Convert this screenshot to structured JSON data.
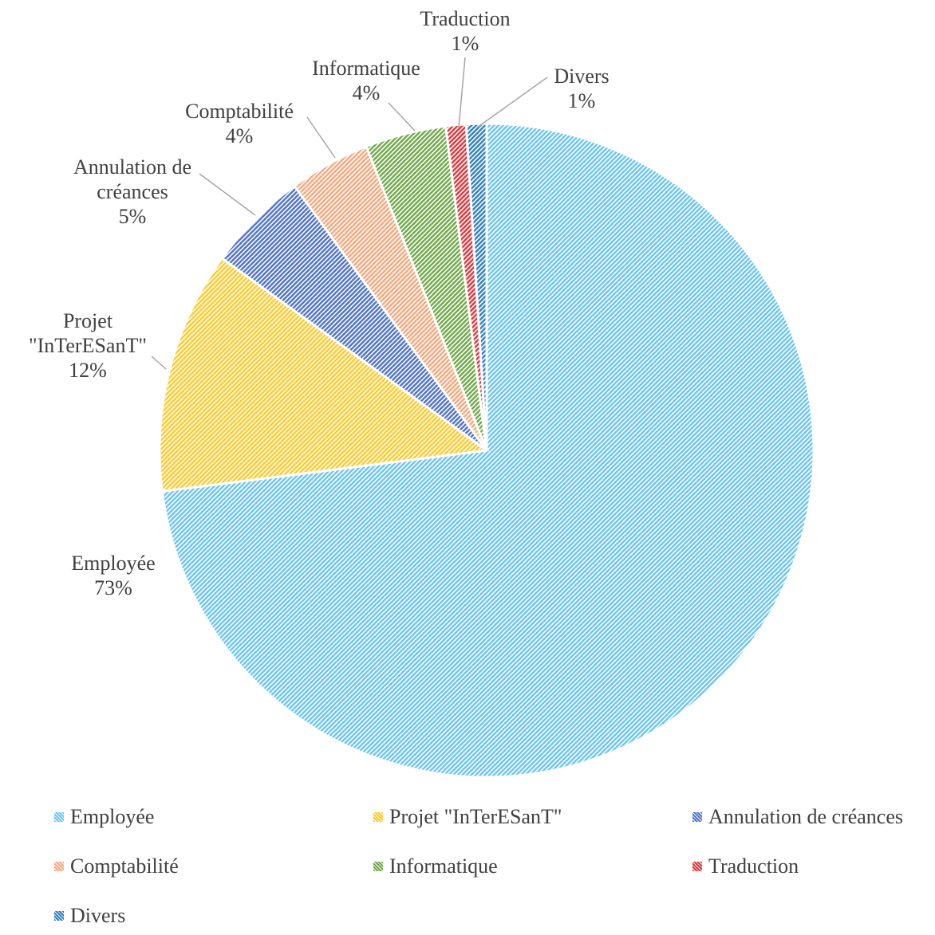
{
  "chart_data": {
    "type": "pie",
    "slices": [
      {
        "name": "Employée",
        "value": 73,
        "label_name_lines": [
          "Employée"
        ],
        "label_value": "73%",
        "color": "#6cc4f2"
      },
      {
        "name": "Projet \"InTerESanT\"",
        "value": 12,
        "label_name_lines": [
          "Projet",
          "\"InTerESanT\""
        ],
        "label_value": "12%",
        "color": "#ffc928"
      },
      {
        "name": "Annulation de créances",
        "value": 5,
        "label_name_lines": [
          "Annulation de",
          "créances"
        ],
        "label_value": "5%",
        "color": "#4f72c9"
      },
      {
        "name": "Comptabilité",
        "value": 4,
        "label_name_lines": [
          "Comptabilité"
        ],
        "label_value": "4%",
        "color": "#f4a77c"
      },
      {
        "name": "Informatique",
        "value": 4,
        "label_name_lines": [
          "Informatique"
        ],
        "label_value": "4%",
        "color": "#6fa84a"
      },
      {
        "name": "Traduction",
        "value": 1,
        "label_name_lines": [
          "Traduction"
        ],
        "label_value": "1%",
        "color": "#e0353a"
      },
      {
        "name": "Divers",
        "value": 1,
        "label_name_lines": [
          "Divers"
        ],
        "label_value": "1%",
        "color": "#2f7fc0"
      }
    ],
    "legend": {
      "placement": "bottom",
      "items": [
        "Employée",
        "Projet \"InTerESanT\"",
        "Annulation de créances",
        "Comptabilité",
        "Informatique",
        "Traduction",
        "Divers"
      ]
    }
  }
}
